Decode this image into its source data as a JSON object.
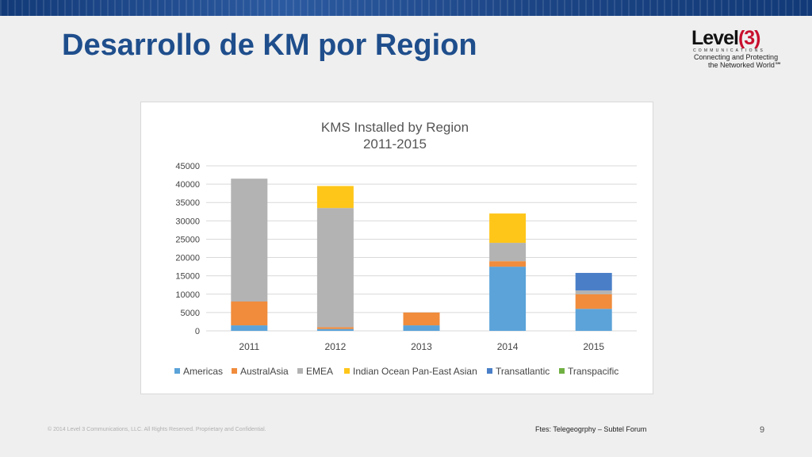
{
  "slide": {
    "title": "Desarrollo de KM por Region",
    "footer_copyright": "© 2014 Level 3 Communications, LLC. All Rights Reserved. Proprietary and Confidential.",
    "source": "Ftes: Telegeogrphy – Subtel Forum",
    "page_number": "9"
  },
  "logo": {
    "word": "Level",
    "number": "(3)",
    "sub": "COMMUNICATIONS",
    "tagline_1": "Connecting and Protecting",
    "tagline_2": "the Networked World℠",
    "colors": {
      "text": "#111111",
      "accent": "#c8102e"
    }
  },
  "chart_data": {
    "type": "bar",
    "stacked": true,
    "title": "KMS Installed by Region",
    "subtitle": "2011-2015",
    "categories": [
      "2011",
      "2012",
      "2013",
      "2014",
      "2015"
    ],
    "ylim": [
      0,
      45000
    ],
    "yticks": [
      "0",
      "5000",
      "10000",
      "15000",
      "20000",
      "25000",
      "30000",
      "35000",
      "40000",
      "45000"
    ],
    "grid": true,
    "legend_position": "bottom",
    "series": [
      {
        "name": "Americas",
        "color": "#5ba3d9",
        "values": [
          1500,
          500,
          1500,
          17500,
          6000
        ]
      },
      {
        "name": "AustralAsia",
        "color": "#f08c3c",
        "values": [
          6500,
          500,
          3500,
          1500,
          4000
        ]
      },
      {
        "name": "EMEA",
        "color": "#b3b3b3",
        "values": [
          33500,
          32500,
          0,
          5000,
          1000
        ]
      },
      {
        "name": "Indian Ocean Pan-East Asian",
        "color": "#ffc61a",
        "values": [
          0,
          6000,
          0,
          8000,
          0
        ]
      },
      {
        "name": "Transatlantic",
        "color": "#4a7fc8",
        "values": [
          0,
          0,
          0,
          0,
          4800
        ]
      },
      {
        "name": "Transpacific",
        "color": "#70b042",
        "values": [
          0,
          0,
          0,
          0,
          0
        ]
      }
    ]
  }
}
